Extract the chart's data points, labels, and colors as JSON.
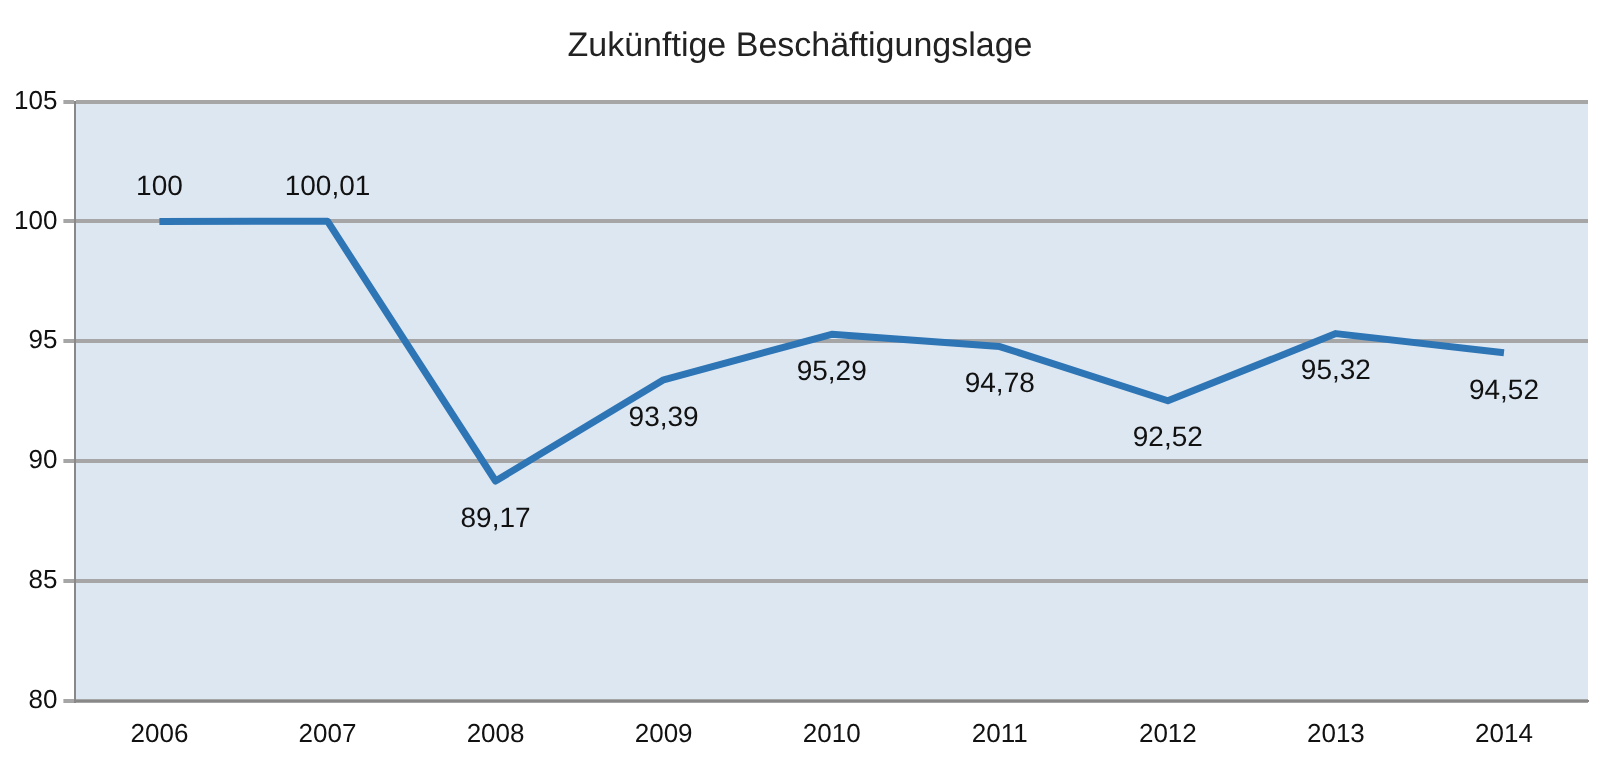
{
  "chart_data": {
    "type": "line",
    "title": "Zukünftige Beschäftigungslage",
    "categories": [
      "2006",
      "2007",
      "2008",
      "2009",
      "2010",
      "2011",
      "2012",
      "2013",
      "2014"
    ],
    "series": [
      {
        "color": "#2e75b6",
        "values": [
          100,
          100.01,
          89.17,
          93.39,
          95.29,
          94.78,
          92.52,
          95.32,
          94.52
        ],
        "value_labels": [
          "100",
          "100,01",
          "89,17",
          "93,39",
          "95,29",
          "94,78",
          "92,52",
          "95,32",
          "94,52"
        ]
      }
    ],
    "ylim": [
      80,
      105
    ],
    "yticks": [
      80,
      85,
      90,
      95,
      100,
      105
    ],
    "grid": "y",
    "legend": false,
    "marker": "none",
    "line_style": "solid"
  }
}
